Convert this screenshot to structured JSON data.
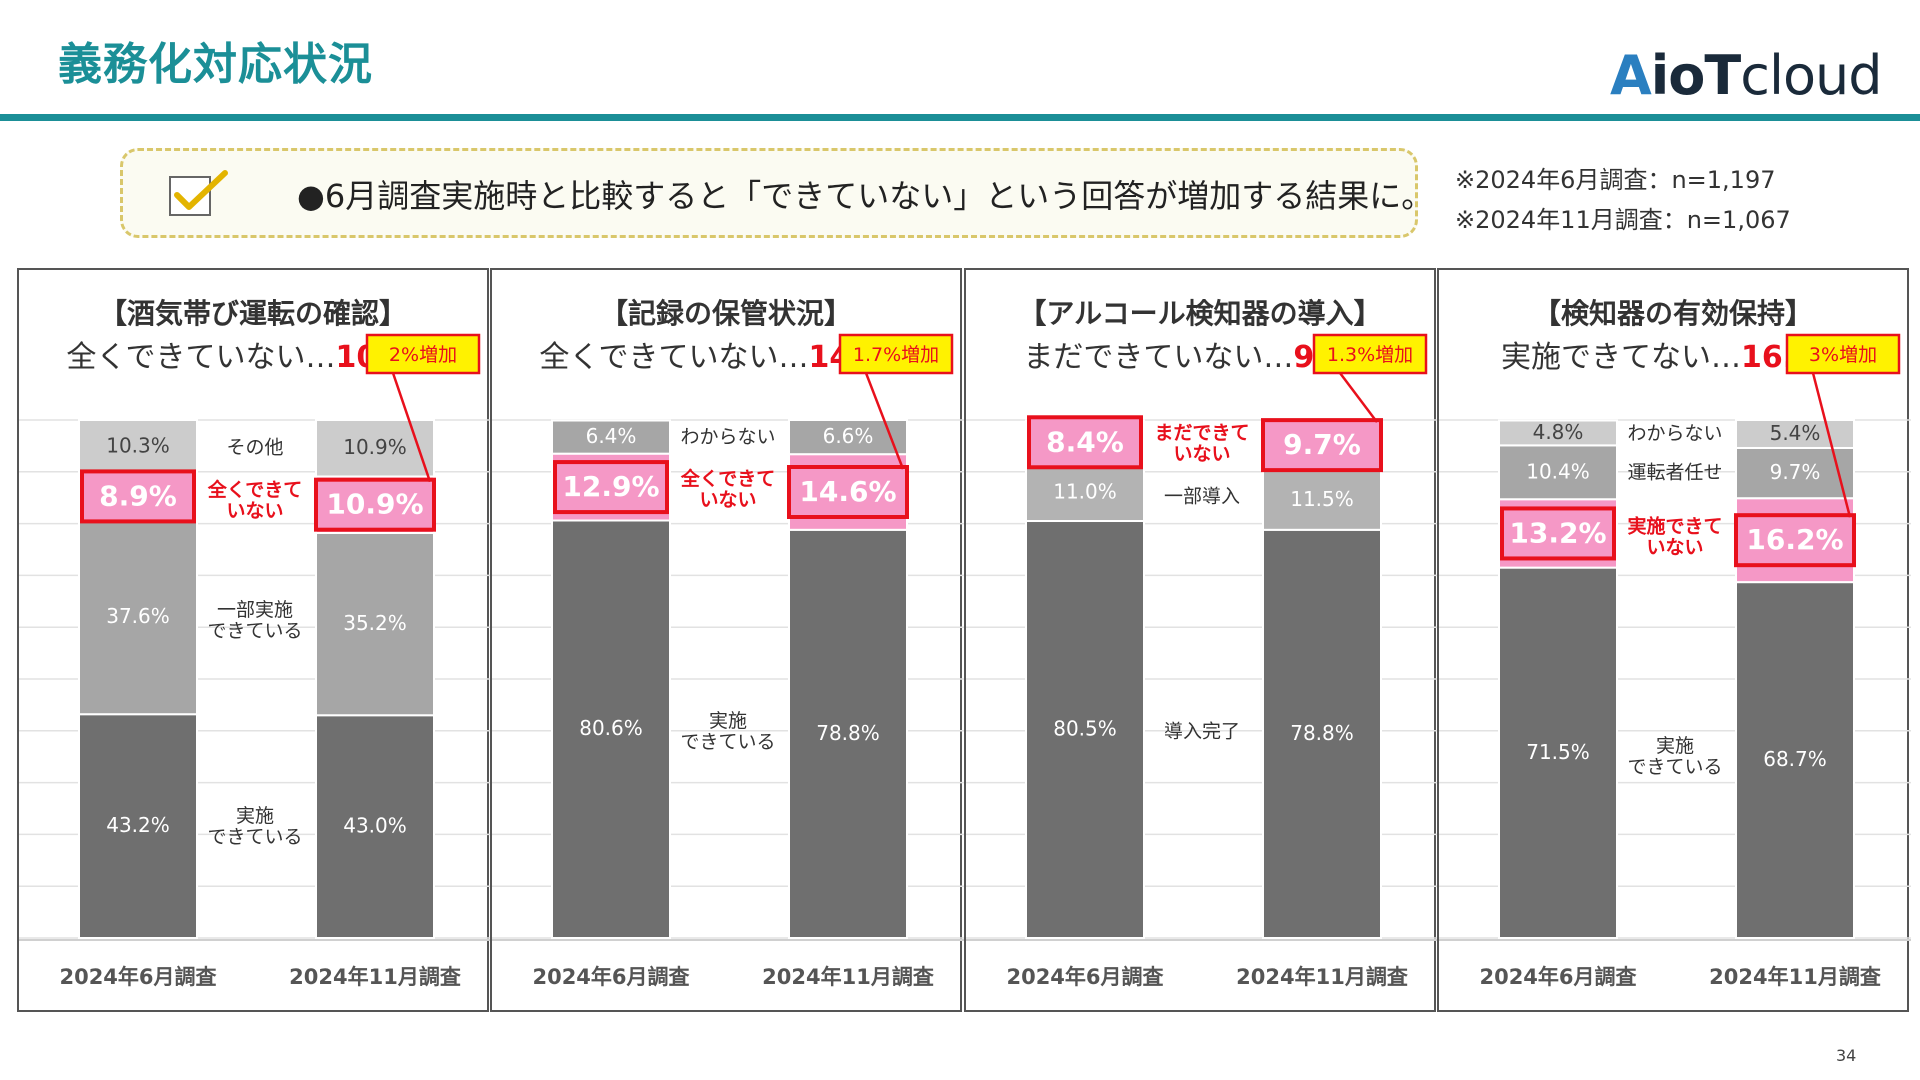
{
  "page": {
    "title": "義務化対応状況",
    "logo": {
      "a": "A",
      "io": "io",
      "t": "T",
      "cloud": "cloud"
    },
    "callout": "●6月調査実施時と比較すると「できていない」という回答が増加する結果に。",
    "notes": [
      "※2024年6月調査：n=1,197",
      "※2024年11月調査：n=1,067"
    ],
    "page_number": "34",
    "colors": {
      "accent": "#1b8f97",
      "highlight": "#e8101c",
      "pink": "#f598c6",
      "dark": "#6f6f6f",
      "mid": "#a6a6a6",
      "light": "#cccccc"
    }
  },
  "chart_data": [
    {
      "type": "bar",
      "stacked": true,
      "title": "【酒気帯び運転の確認】",
      "subtitle_text": "全くできていない…",
      "subtitle_value": "10.9%",
      "categories": [
        "2024年6月調査",
        "2024年11月調査"
      ],
      "series": [
        {
          "name": "実施\nできている",
          "values": [
            43.2,
            43.0
          ],
          "color": "#6f6f6f"
        },
        {
          "name": "一部実施\nできている",
          "values": [
            37.6,
            35.2
          ],
          "color": "#a6a6a6"
        },
        {
          "name": "全くできて\nいない",
          "values": [
            8.9,
            10.9
          ],
          "color": "#f598c6",
          "highlight": true
        },
        {
          "name": "その他",
          "values": [
            10.3,
            10.9
          ],
          "color": "#cccccc"
        }
      ],
      "increase_label": "2%増加"
    },
    {
      "type": "bar",
      "stacked": true,
      "title": "【記録の保管状況】",
      "subtitle_text": "全くできていない…",
      "subtitle_value": "14.6%",
      "categories": [
        "2024年6月調査",
        "2024年11月調査"
      ],
      "series": [
        {
          "name": "実施\nできている",
          "values": [
            80.6,
            78.8
          ],
          "color": "#6f6f6f"
        },
        {
          "name": "全くできて\nいない",
          "values": [
            12.9,
            14.6
          ],
          "color": "#f598c6",
          "highlight": true
        },
        {
          "name": "わからない",
          "values": [
            6.4,
            6.6
          ],
          "color": "#a6a6a6"
        }
      ],
      "increase_label": "1.7%増加"
    },
    {
      "type": "bar",
      "stacked": true,
      "title": "【アルコール検知器の導入】",
      "subtitle_text": "まだできていない…",
      "subtitle_value": "9.7%",
      "categories": [
        "2024年6月調査",
        "2024年11月調査"
      ],
      "series": [
        {
          "name": "導入完了",
          "values": [
            80.5,
            78.8
          ],
          "color": "#6f6f6f"
        },
        {
          "name": "一部導入",
          "values": [
            11.0,
            11.5
          ],
          "color": "#b3b3b3"
        },
        {
          "name": "まだできて\nいない",
          "values": [
            8.4,
            9.7
          ],
          "color": "#f598c6",
          "highlight": true
        }
      ],
      "increase_label": "1.3%増加"
    },
    {
      "type": "bar",
      "stacked": true,
      "title": "【検知器の有効保持】",
      "subtitle_text": "実施できてない…",
      "subtitle_value": "16.2%",
      "categories": [
        "2024年6月調査",
        "2024年11月調査"
      ],
      "series": [
        {
          "name": "実施\nできている",
          "values": [
            71.5,
            68.7
          ],
          "color": "#6f6f6f"
        },
        {
          "name": "実施できて\nいない",
          "values": [
            13.2,
            16.2
          ],
          "color": "#f598c6",
          "highlight": true
        },
        {
          "name": "運転者任せ",
          "values": [
            10.4,
            9.7
          ],
          "color": "#a6a6a6"
        },
        {
          "name": "わからない",
          "values": [
            4.8,
            5.4
          ],
          "color": "#cccccc"
        }
      ],
      "increase_label": "3%増加"
    }
  ]
}
